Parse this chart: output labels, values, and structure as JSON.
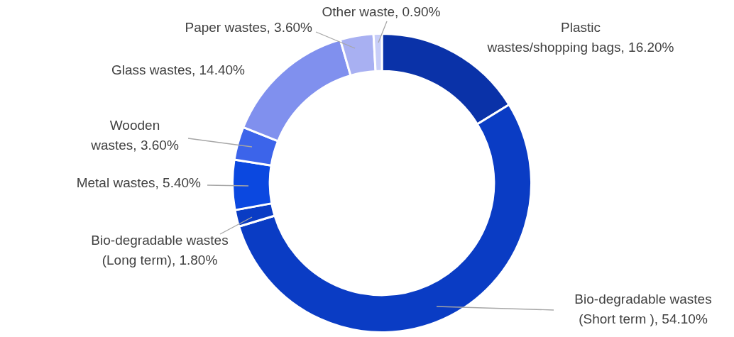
{
  "chart_data": {
    "type": "donut",
    "categories": [
      "Plastic wastes/shopping bags",
      "Bio-degradable wastes (Short term )",
      "Bio-degradable wastes (Long term)",
      "Metal wastes",
      "Wooden wastes",
      "Glass wastes",
      "Paper wastes",
      "Other waste"
    ],
    "values": [
      16.2,
      54.1,
      1.8,
      5.4,
      3.6,
      14.4,
      3.6,
      0.9
    ],
    "colors": [
      "#0a32a8",
      "#0a3cc4",
      "#0a3cc4",
      "#0b48e0",
      "#3c64ea",
      "#8090ee",
      "#a8b0f2",
      "#c8cef8"
    ],
    "value_labels": [
      "16.20%",
      "54.10%",
      "1.80%",
      "5.40%",
      "3.60%",
      "14.40%",
      "3.60%",
      "0.90%"
    ],
    "legend": false
  }
}
